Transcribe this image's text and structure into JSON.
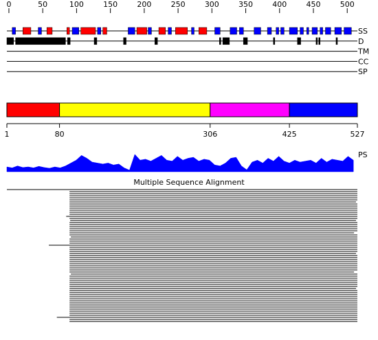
{
  "residue_range": [
    1,
    527
  ],
  "ruler": {
    "xlim": [
      -3,
      515
    ],
    "ticks": [
      0,
      50,
      100,
      150,
      200,
      250,
      300,
      350,
      400,
      450,
      500
    ]
  },
  "tracks": [
    {
      "label": "SS",
      "segments": [
        {
          "start": 9,
          "end": 14,
          "color": "#0000ff"
        },
        {
          "start": 25,
          "end": 37,
          "color": "#ff0000"
        },
        {
          "start": 48,
          "end": 53,
          "color": "#0000ff"
        },
        {
          "start": 61,
          "end": 69,
          "color": "#ff0000"
        },
        {
          "start": 91,
          "end": 95,
          "color": "#ff0000"
        },
        {
          "start": 99,
          "end": 109,
          "color": "#0000ff"
        },
        {
          "start": 112,
          "end": 134,
          "color": "#ff0000"
        },
        {
          "start": 137,
          "end": 142,
          "color": "#0000ff"
        },
        {
          "start": 145,
          "end": 151,
          "color": "#ff0000"
        },
        {
          "start": 183,
          "end": 193,
          "color": "#0000ff"
        },
        {
          "start": 196,
          "end": 211,
          "color": "#ff0000"
        },
        {
          "start": 213,
          "end": 218,
          "color": "#0000ff"
        },
        {
          "start": 229,
          "end": 239,
          "color": "#ff0000"
        },
        {
          "start": 243,
          "end": 248,
          "color": "#0000ff"
        },
        {
          "start": 254,
          "end": 272,
          "color": "#ff0000"
        },
        {
          "start": 278,
          "end": 282,
          "color": "#0000ff"
        },
        {
          "start": 289,
          "end": 301,
          "color": "#ff0000"
        },
        {
          "start": 313,
          "end": 321,
          "color": "#0000ff"
        },
        {
          "start": 336,
          "end": 346,
          "color": "#0000ff"
        },
        {
          "start": 350,
          "end": 356,
          "color": "#0000ff"
        },
        {
          "start": 372,
          "end": 382,
          "color": "#0000ff"
        },
        {
          "start": 392,
          "end": 398,
          "color": "#0000ff"
        },
        {
          "start": 405,
          "end": 409,
          "color": "#0000ff"
        },
        {
          "start": 412,
          "end": 417,
          "color": "#0000ff"
        },
        {
          "start": 425,
          "end": 437,
          "color": "#0000ff"
        },
        {
          "start": 441,
          "end": 446,
          "color": "#0000ff"
        },
        {
          "start": 451,
          "end": 454,
          "color": "#0000ff"
        },
        {
          "start": 459,
          "end": 467,
          "color": "#0000ff"
        },
        {
          "start": 471,
          "end": 475,
          "color": "#0000ff"
        },
        {
          "start": 479,
          "end": 487,
          "color": "#0000ff"
        },
        {
          "start": 493,
          "end": 503,
          "color": "#0000ff"
        },
        {
          "start": 507,
          "end": 518,
          "color": "#0000ff"
        }
      ]
    },
    {
      "label": "D",
      "segments": [
        {
          "start": 1,
          "end": 11,
          "color": "#000000"
        },
        {
          "start": 14,
          "end": 89,
          "color": "#000000"
        },
        {
          "start": 92,
          "end": 96,
          "color": "#000000"
        },
        {
          "start": 132,
          "end": 136,
          "color": "#000000"
        },
        {
          "start": 176,
          "end": 180,
          "color": "#000000"
        },
        {
          "start": 223,
          "end": 227,
          "color": "#000000"
        },
        {
          "start": 320,
          "end": 322,
          "color": "#000000"
        },
        {
          "start": 325,
          "end": 335,
          "color": "#000000"
        },
        {
          "start": 356,
          "end": 362,
          "color": "#000000"
        },
        {
          "start": 401,
          "end": 403,
          "color": "#000000"
        },
        {
          "start": 437,
          "end": 442,
          "color": "#000000"
        },
        {
          "start": 465,
          "end": 467,
          "color": "#000000"
        },
        {
          "start": 469,
          "end": 471,
          "color": "#000000"
        },
        {
          "start": 495,
          "end": 497,
          "color": "#000000"
        }
      ]
    },
    {
      "label": "TM",
      "segments": []
    },
    {
      "label": "CC",
      "segments": []
    },
    {
      "label": "SP",
      "segments": []
    }
  ],
  "domains": {
    "boundaries": [
      1,
      80,
      306,
      425,
      527
    ],
    "colors": [
      "#ff0000",
      "#ffff00",
      "#ff00ff",
      "#0000ff"
    ]
  },
  "ps_profile": {
    "label": "PS",
    "ylim": [
      0,
      1
    ],
    "color": "#0000ff",
    "x": [
      1,
      9,
      17,
      25,
      33,
      41,
      49,
      57,
      65,
      73,
      81,
      89,
      97,
      105,
      113,
      121,
      129,
      137,
      145,
      153,
      161,
      169,
      177,
      185,
      193,
      201,
      209,
      217,
      225,
      233,
      241,
      249,
      257,
      265,
      273,
      281,
      289,
      297,
      305,
      313,
      321,
      329,
      337,
      345,
      353,
      361,
      369,
      377,
      385,
      393,
      401,
      409,
      417,
      425,
      433,
      441,
      449,
      457,
      465,
      473,
      481,
      489,
      497,
      505,
      513,
      521
    ],
    "values": [
      0.25,
      0.2,
      0.3,
      0.22,
      0.25,
      0.2,
      0.28,
      0.22,
      0.18,
      0.25,
      0.2,
      0.3,
      0.45,
      0.6,
      0.85,
      0.7,
      0.5,
      0.45,
      0.4,
      0.45,
      0.35,
      0.4,
      0.2,
      0.08,
      0.9,
      0.6,
      0.65,
      0.55,
      0.7,
      0.85,
      0.6,
      0.55,
      0.8,
      0.6,
      0.7,
      0.75,
      0.55,
      0.65,
      0.6,
      0.35,
      0.3,
      0.45,
      0.7,
      0.75,
      0.3,
      0.1,
      0.5,
      0.6,
      0.45,
      0.7,
      0.55,
      0.8,
      0.55,
      0.45,
      0.6,
      0.5,
      0.55,
      0.6,
      0.45,
      0.7,
      0.5,
      0.65,
      0.6,
      0.55,
      0.8,
      0.6
    ]
  },
  "msa": {
    "title": "Multiple Sequence Alignment",
    "rows": [
      [
        1,
        527
      ],
      [
        95,
        527
      ],
      [
        95,
        527
      ],
      [
        95,
        527
      ],
      [
        95,
        527
      ],
      [
        95,
        527
      ],
      [
        95,
        525
      ],
      [
        95,
        527
      ],
      [
        95,
        527
      ],
      [
        95,
        527
      ],
      [
        95,
        527
      ],
      [
        95,
        527
      ],
      [
        95,
        527
      ],
      [
        90,
        527
      ],
      [
        95,
        527
      ],
      [
        96,
        525
      ],
      [
        95,
        527
      ],
      [
        95,
        527
      ],
      [
        95,
        527
      ],
      [
        95,
        527
      ],
      [
        95,
        527
      ],
      [
        95,
        522
      ],
      [
        95,
        527
      ],
      [
        97,
        527
      ],
      [
        95,
        527
      ],
      [
        95,
        527
      ],
      [
        95,
        527
      ],
      [
        64,
        527
      ],
      [
        95,
        527
      ],
      [
        95,
        527
      ],
      [
        95,
        527
      ],
      [
        95,
        525
      ],
      [
        95,
        527
      ],
      [
        95,
        527
      ],
      [
        95,
        527
      ],
      [
        95,
        527
      ],
      [
        95,
        527
      ],
      [
        95,
        527
      ],
      [
        95,
        527
      ],
      [
        95,
        527
      ],
      [
        95,
        522
      ],
      [
        97,
        527
      ],
      [
        95,
        527
      ],
      [
        95,
        527
      ],
      [
        95,
        527
      ],
      [
        95,
        527
      ],
      [
        95,
        527
      ],
      [
        95,
        527
      ],
      [
        95,
        525
      ],
      [
        95,
        527
      ],
      [
        95,
        527
      ],
      [
        95,
        527
      ],
      [
        95,
        527
      ],
      [
        95,
        527
      ],
      [
        95,
        527
      ],
      [
        95,
        527
      ],
      [
        95,
        527
      ],
      [
        95,
        527
      ],
      [
        95,
        527
      ],
      [
        95,
        527
      ],
      [
        95,
        527
      ],
      [
        95,
        527
      ],
      [
        76,
        527
      ],
      [
        95,
        527
      ],
      [
        95,
        527
      ]
    ]
  }
}
